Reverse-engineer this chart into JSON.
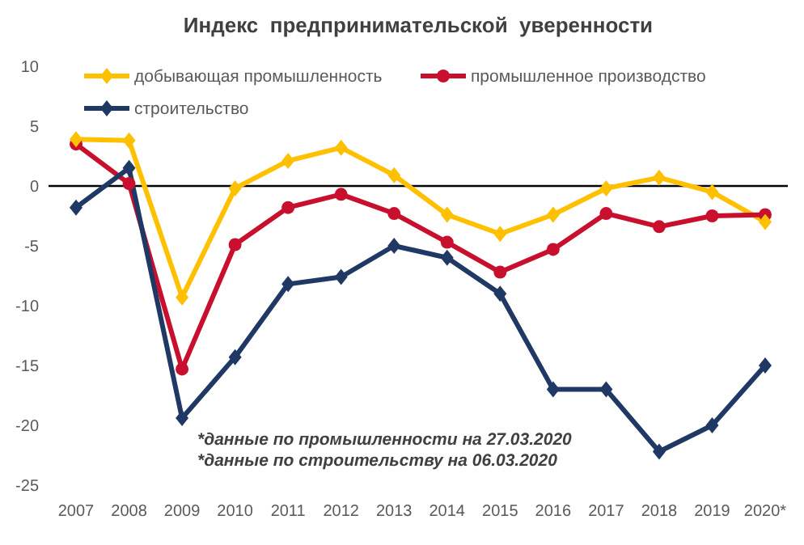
{
  "chart_data": {
    "type": "line",
    "title": "Индекс  предпринимательской  уверенности",
    "categories": [
      "2007",
      "2008",
      "2009",
      "2010",
      "2011",
      "2012",
      "2013",
      "2014",
      "2015",
      "2016",
      "2017",
      "2018",
      "2019",
      "2020*"
    ],
    "series": [
      {
        "name": "добывающая промышленность",
        "color": "#ffc000",
        "marker": "diamond",
        "values": [
          3.9,
          3.8,
          -9.3,
          -0.2,
          2.1,
          3.2,
          0.9,
          -2.4,
          -4.0,
          -2.4,
          -0.2,
          0.7,
          -0.5,
          -3.0
        ]
      },
      {
        "name": "промышленное производство",
        "color": "#c8102e",
        "marker": "circle",
        "values": [
          3.5,
          0.2,
          -15.3,
          -4.9,
          -1.8,
          -0.7,
          -2.3,
          -4.7,
          -7.2,
          -5.3,
          -2.3,
          -3.4,
          -2.5,
          -2.4
        ]
      },
      {
        "name": "строительство",
        "color": "#1f3864",
        "marker": "diamond",
        "values": [
          -1.8,
          1.5,
          -19.4,
          -14.3,
          -8.2,
          -7.6,
          -5.0,
          -6.0,
          -9.0,
          -17.0,
          -17.0,
          -22.2,
          -20.0,
          -15.0
        ]
      }
    ],
    "ylim": [
      -25,
      10
    ],
    "yticks": [
      10,
      5,
      0,
      -5,
      -10,
      -15,
      -20,
      -25
    ],
    "annotations": [
      "*данные по промышленности на 27.03.2020",
      "*данные по строительству на 06.03.2020"
    ],
    "ref_lines": [
      {
        "axis": "y",
        "value": 0,
        "color": "#000000"
      }
    ],
    "legend": "top"
  }
}
